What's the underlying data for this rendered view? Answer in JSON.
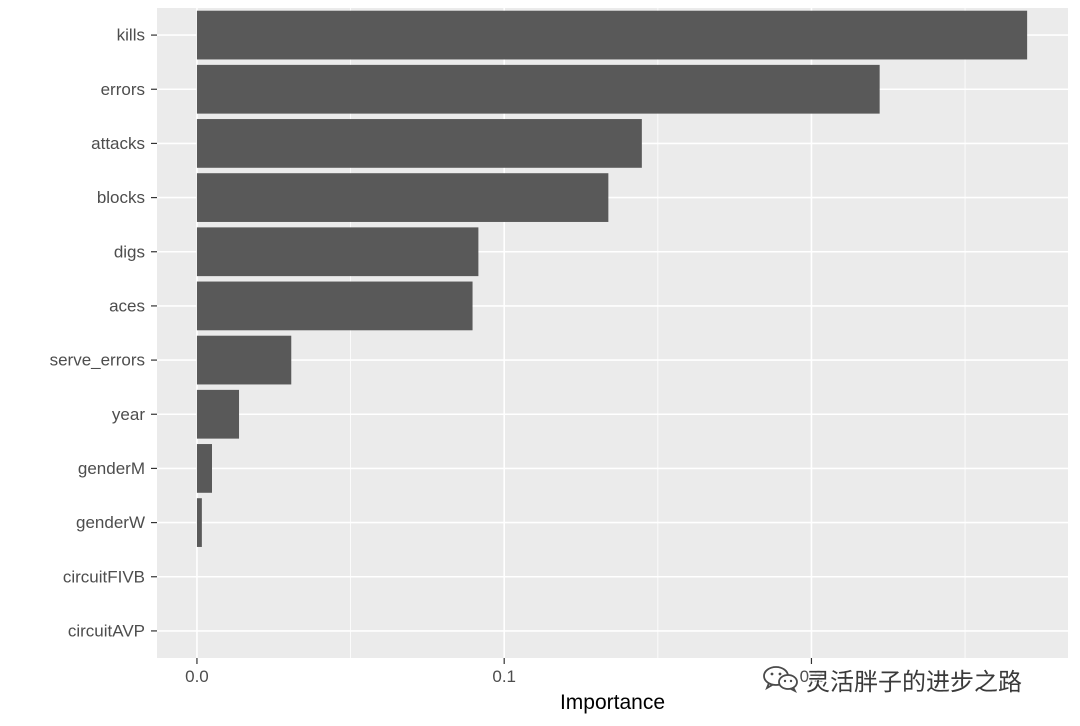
{
  "chart_data": {
    "type": "bar",
    "orientation": "horizontal",
    "categories": [
      "kills",
      "errors",
      "attacks",
      "blocks",
      "digs",
      "aces",
      "serve_errors",
      "year",
      "genderM",
      "genderW",
      "circuitFIVB",
      "circuitAVP"
    ],
    "values": [
      0.2702,
      0.2222,
      0.1448,
      0.1339,
      0.0916,
      0.0897,
      0.0307,
      0.0137,
      0.0049,
      0.0016,
      0.0,
      0.0
    ],
    "xlabel": "Importance",
    "ylabel": "",
    "xlim": [
      -0.013,
      0.2835
    ],
    "x_ticks": [
      0.0,
      0.1,
      0.2
    ],
    "x_tick_labels": [
      "0.0",
      "0.1",
      "0.2"
    ],
    "grid": true,
    "bar_color": "#595959",
    "panel_background": "#ebebeb",
    "grid_color": "#ffffff"
  },
  "watermark": {
    "text": "灵活胖子的进步之路",
    "icon": "wechat-icon"
  }
}
